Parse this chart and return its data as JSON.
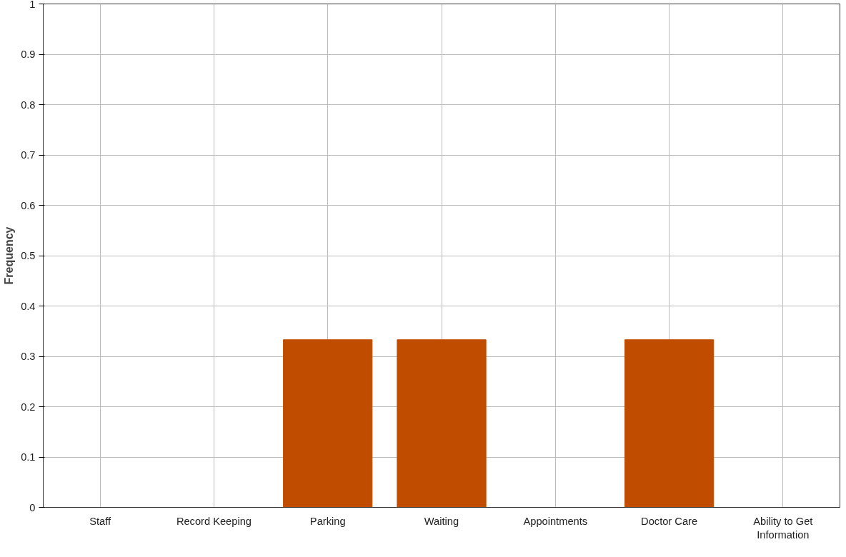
{
  "chart_data": {
    "type": "bar",
    "ylabel": "Frequency",
    "categories": [
      "Staff",
      "Record Keeping",
      "Parking",
      "Waiting",
      "Appointments",
      "Doctor Care",
      "Ability to Get Information"
    ],
    "values": [
      0,
      0,
      0.333,
      0.333,
      0,
      0.333,
      0
    ],
    "color": "#c04c00",
    "ylim": [
      0,
      1
    ],
    "yticks": [
      0,
      0.1,
      0.2,
      0.3,
      0.4,
      0.5,
      0.6,
      0.7,
      0.8,
      0.9,
      1
    ],
    "grid": true
  }
}
